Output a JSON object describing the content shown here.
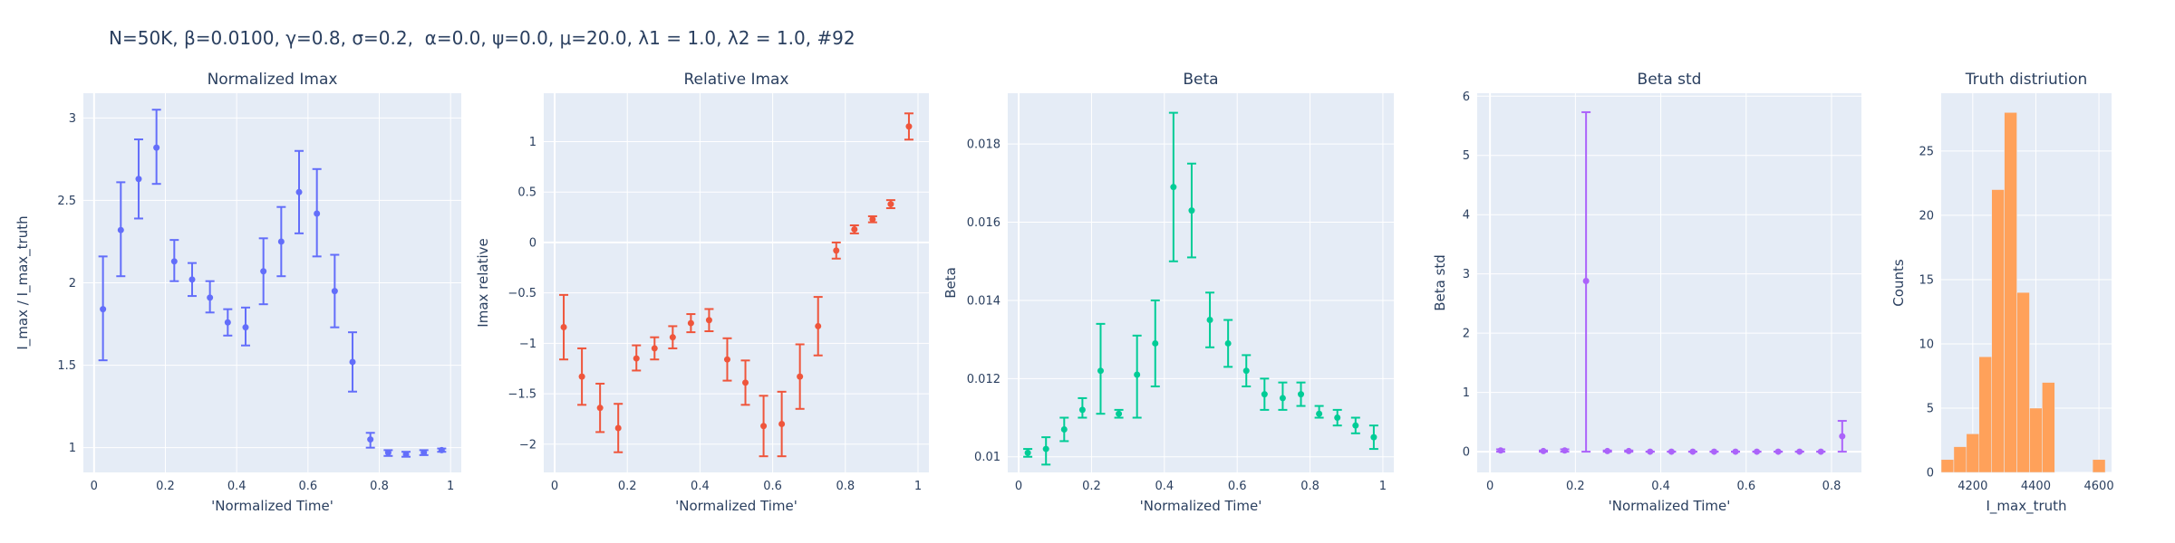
{
  "title": "N=50K, β=0.0100, γ=0.8, σ=0.2,  α=0.0, ψ=0.0, μ=20.0, λ1 = 1.0, λ2 = 1.0, #92",
  "chart_data": [
    {
      "type": "scatter",
      "title": "Normalized Imax",
      "xlabel": "'Normalized Time'",
      "ylabel": "I_max / I_max_truth",
      "color": "#636efa",
      "xlim": [
        -0.03,
        1.03
      ],
      "ylim": [
        0.85,
        3.15
      ],
      "xticks": [
        0,
        0.2,
        0.4,
        0.6,
        0.8,
        1
      ],
      "xtick_labels": [
        "0",
        "0.2",
        "0.4",
        "0.6",
        "0.8",
        "1"
      ],
      "yticks": [
        1,
        1.5,
        2,
        2.5,
        3
      ],
      "ytick_labels": [
        "1",
        "1.5",
        "2",
        "2.5",
        "3"
      ],
      "x": [
        0.025,
        0.075,
        0.125,
        0.175,
        0.225,
        0.275,
        0.325,
        0.375,
        0.425,
        0.475,
        0.525,
        0.575,
        0.625,
        0.675,
        0.725,
        0.775,
        0.825,
        0.875,
        0.925,
        0.975
      ],
      "y": [
        1.84,
        2.32,
        2.63,
        2.82,
        2.13,
        2.02,
        1.91,
        1.76,
        1.73,
        2.07,
        2.25,
        2.55,
        2.42,
        1.95,
        1.52,
        1.05,
        0.97,
        0.96,
        0.97,
        0.985
      ],
      "err_low": [
        1.53,
        2.04,
        2.39,
        2.6,
        2.01,
        1.92,
        1.82,
        1.68,
        1.62,
        1.87,
        2.04,
        2.3,
        2.16,
        1.73,
        1.34,
        1.0,
        0.95,
        0.945,
        0.955,
        0.975
      ],
      "err_high": [
        2.16,
        2.61,
        2.87,
        3.05,
        2.26,
        2.12,
        2.01,
        1.84,
        1.85,
        2.27,
        2.46,
        2.8,
        2.69,
        2.17,
        1.7,
        1.09,
        0.985,
        0.975,
        0.985,
        0.995
      ]
    },
    {
      "type": "scatter",
      "title": "Relative Imax",
      "xlabel": "'Normalized Time'",
      "ylabel": "Imax relative",
      "color": "#ef553b",
      "xlim": [
        -0.03,
        1.03
      ],
      "ylim": [
        -2.28,
        1.48
      ],
      "xticks": [
        0,
        0.2,
        0.4,
        0.6,
        0.8,
        1
      ],
      "xtick_labels": [
        "0",
        "0.2",
        "0.4",
        "0.6",
        "0.8",
        "1"
      ],
      "yticks": [
        -2,
        -1.5,
        -1,
        -0.5,
        0,
        0.5,
        1
      ],
      "ytick_labels": [
        "−2",
        "−1.5",
        "−1",
        "−0.5",
        "0",
        "0.5",
        "1"
      ],
      "x": [
        0.025,
        0.075,
        0.125,
        0.175,
        0.225,
        0.275,
        0.325,
        0.375,
        0.425,
        0.475,
        0.525,
        0.575,
        0.625,
        0.675,
        0.725,
        0.775,
        0.825,
        0.875,
        0.925,
        0.975
      ],
      "y": [
        -0.84,
        -1.33,
        -1.64,
        -1.84,
        -1.15,
        -1.05,
        -0.94,
        -0.8,
        -0.77,
        -1.16,
        -1.39,
        -1.82,
        -1.8,
        -1.33,
        -0.83,
        -0.08,
        0.13,
        0.23,
        0.38,
        1.15
      ],
      "err_low": [
        -1.16,
        -1.61,
        -1.88,
        -2.08,
        -1.27,
        -1.16,
        -1.05,
        -0.89,
        -0.88,
        -1.37,
        -1.61,
        -2.12,
        -2.12,
        -1.65,
        -1.12,
        -0.16,
        0.09,
        0.2,
        0.34,
        1.02
      ],
      "err_high": [
        -0.52,
        -1.05,
        -1.4,
        -1.6,
        -1.02,
        -0.94,
        -0.83,
        -0.71,
        -0.66,
        -0.95,
        -1.17,
        -1.52,
        -1.48,
        -1.01,
        -0.54,
        0.0,
        0.17,
        0.26,
        0.42,
        1.28
      ]
    },
    {
      "type": "scatter",
      "title": "Beta",
      "xlabel": "'Normalized Time'",
      "ylabel": "Beta",
      "color": "#00cc96",
      "xlim": [
        -0.03,
        1.03
      ],
      "ylim": [
        0.0096,
        0.0193
      ],
      "xticks": [
        0,
        0.2,
        0.4,
        0.6,
        0.8,
        1
      ],
      "xtick_labels": [
        "0",
        "0.2",
        "0.4",
        "0.6",
        "0.8",
        "1"
      ],
      "yticks": [
        0.01,
        0.012,
        0.014,
        0.016,
        0.018
      ],
      "ytick_labels": [
        "0.01",
        "0.012",
        "0.014",
        "0.016",
        "0.018"
      ],
      "x": [
        0.025,
        0.075,
        0.125,
        0.175,
        0.225,
        0.275,
        0.325,
        0.375,
        0.425,
        0.475,
        0.525,
        0.575,
        0.625,
        0.675,
        0.725,
        0.775,
        0.825,
        0.875,
        0.925,
        0.975
      ],
      "y": [
        0.0101,
        0.0102,
        0.0107,
        0.0112,
        0.0122,
        0.0111,
        0.0121,
        0.0129,
        0.0169,
        0.0163,
        0.0135,
        0.0129,
        0.0122,
        0.0116,
        0.0115,
        0.0116,
        0.0111,
        0.011,
        0.0108,
        0.0105
      ],
      "err_low": [
        0.01,
        0.0098,
        0.0104,
        0.011,
        0.0111,
        0.011,
        0.011,
        0.0118,
        0.015,
        0.0151,
        0.0128,
        0.0123,
        0.0118,
        0.0112,
        0.0112,
        0.0113,
        0.011,
        0.0108,
        0.0106,
        0.0102
      ],
      "err_high": [
        0.0102,
        0.0105,
        0.011,
        0.0115,
        0.0134,
        0.0112,
        0.0131,
        0.014,
        0.0188,
        0.0175,
        0.0142,
        0.0135,
        0.0126,
        0.012,
        0.0119,
        0.0119,
        0.0113,
        0.0112,
        0.011,
        0.0108
      ]
    },
    {
      "type": "scatter",
      "title": "Beta std",
      "xlabel": "'Normalized Time'",
      "ylabel": "Beta std",
      "color": "#ab63fa",
      "xlim": [
        -0.03,
        0.87
      ],
      "ylim": [
        -0.35,
        6.05
      ],
      "xticks": [
        0,
        0.2,
        0.4,
        0.6,
        0.8
      ],
      "xtick_labels": [
        "0",
        "0.2",
        "0.4",
        "0.6",
        "0.8"
      ],
      "yticks": [
        0,
        1,
        2,
        3,
        4,
        5,
        6
      ],
      "ytick_labels": [
        "0",
        "1",
        "2",
        "3",
        "4",
        "5",
        "6"
      ],
      "x": [
        0.025,
        0.125,
        0.175,
        0.225,
        0.275,
        0.325,
        0.375,
        0.425,
        0.475,
        0.525,
        0.575,
        0.625,
        0.675,
        0.725,
        0.775,
        0.825
      ],
      "y": [
        0.02,
        0.01,
        0.02,
        2.88,
        0.01,
        0.01,
        0.0,
        0.0,
        0.0,
        0.0,
        0.0,
        0.0,
        0.0,
        0.0,
        0.0,
        0.26
      ],
      "err_low": [
        0.0,
        0.0,
        0.0,
        0.0,
        0.0,
        0.0,
        0.0,
        0.0,
        0.0,
        0.0,
        0.0,
        0.0,
        0.0,
        0.0,
        0.0,
        0.0
      ],
      "err_high": [
        0.04,
        0.02,
        0.04,
        5.73,
        0.02,
        0.02,
        0.0,
        0.0,
        0.0,
        0.0,
        0.0,
        0.0,
        0.0,
        0.0,
        0.0,
        0.52
      ]
    },
    {
      "type": "bar",
      "title": "Truth distriution",
      "xlabel": "I_max_truth",
      "ylabel": "Counts",
      "color": "#ffa15a",
      "xlim": [
        4100,
        4640
      ],
      "ylim": [
        0,
        29.5
      ],
      "xticks": [
        4200,
        4400,
        4600
      ],
      "xtick_labels": [
        "4200",
        "4400",
        "4600"
      ],
      "yticks": [
        0,
        5,
        10,
        15,
        20,
        25
      ],
      "ytick_labels": [
        "0",
        "5",
        "10",
        "15",
        "20",
        "25"
      ],
      "bin_edges": [
        4100,
        4140,
        4180,
        4220,
        4260,
        4300,
        4340,
        4380,
        4420,
        4460,
        4500,
        4540,
        4580,
        4620,
        4660
      ],
      "counts": [
        1,
        2,
        3,
        9,
        22,
        28,
        14,
        5,
        7,
        0,
        0,
        0,
        1,
        0
      ]
    }
  ]
}
